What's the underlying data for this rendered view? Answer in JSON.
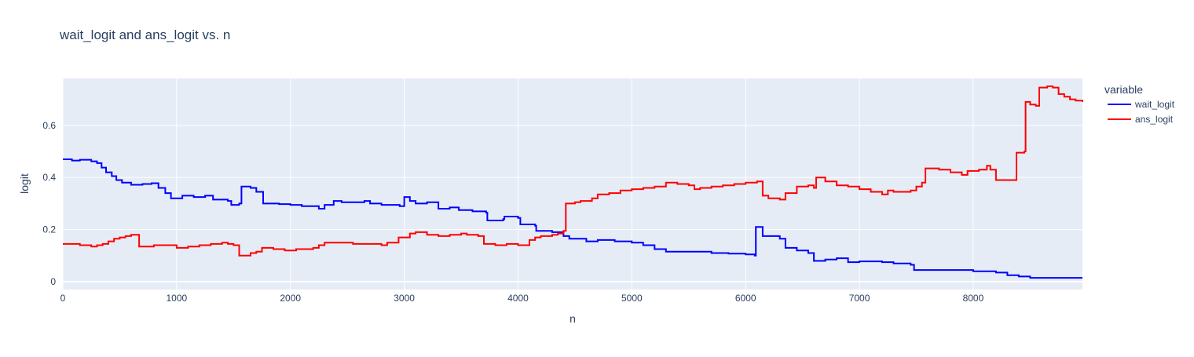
{
  "chart_data": {
    "type": "line",
    "title": "wait_logit and ans_logit vs. n",
    "xlabel": "n",
    "ylabel": "logit",
    "xlim": [
      0,
      8960
    ],
    "ylim": [
      -0.03,
      0.78
    ],
    "xticks": [
      0,
      1000,
      2000,
      3000,
      4000,
      5000,
      6000,
      7000,
      8000
    ],
    "yticks": [
      0,
      0.2,
      0.4,
      0.6
    ],
    "grid": true,
    "legend": {
      "title": "variable",
      "placement": "right"
    },
    "background_color": "#E5ECF6",
    "line_shape": "step",
    "series": [
      {
        "name": "wait_logit",
        "color": "#0000FF",
        "points": [
          [
            0,
            0.47
          ],
          [
            80,
            0.465
          ],
          [
            150,
            0.468
          ],
          [
            250,
            0.462
          ],
          [
            300,
            0.455
          ],
          [
            340,
            0.438
          ],
          [
            380,
            0.42
          ],
          [
            430,
            0.405
          ],
          [
            470,
            0.39
          ],
          [
            520,
            0.38
          ],
          [
            600,
            0.372
          ],
          [
            700,
            0.375
          ],
          [
            780,
            0.378
          ],
          [
            840,
            0.36
          ],
          [
            900,
            0.34
          ],
          [
            950,
            0.32
          ],
          [
            1050,
            0.33
          ],
          [
            1150,
            0.325
          ],
          [
            1250,
            0.33
          ],
          [
            1320,
            0.315
          ],
          [
            1450,
            0.31
          ],
          [
            1480,
            0.295
          ],
          [
            1550,
            0.3
          ],
          [
            1570,
            0.365
          ],
          [
            1650,
            0.36
          ],
          [
            1700,
            0.345
          ],
          [
            1760,
            0.3
          ],
          [
            1900,
            0.298
          ],
          [
            2000,
            0.295
          ],
          [
            2100,
            0.29
          ],
          [
            2250,
            0.28
          ],
          [
            2300,
            0.295
          ],
          [
            2380,
            0.31
          ],
          [
            2450,
            0.305
          ],
          [
            2550,
            0.305
          ],
          [
            2650,
            0.31
          ],
          [
            2700,
            0.3
          ],
          [
            2800,
            0.295
          ],
          [
            2960,
            0.29
          ],
          [
            3000,
            0.325
          ],
          [
            3050,
            0.31
          ],
          [
            3100,
            0.3
          ],
          [
            3200,
            0.305
          ],
          [
            3300,
            0.28
          ],
          [
            3400,
            0.285
          ],
          [
            3480,
            0.275
          ],
          [
            3600,
            0.27
          ],
          [
            3720,
            0.265
          ],
          [
            3730,
            0.235
          ],
          [
            3870,
            0.24
          ],
          [
            3880,
            0.25
          ],
          [
            4000,
            0.245
          ],
          [
            4020,
            0.22
          ],
          [
            4150,
            0.215
          ],
          [
            4160,
            0.195
          ],
          [
            4300,
            0.19
          ],
          [
            4400,
            0.175
          ],
          [
            4450,
            0.165
          ],
          [
            4600,
            0.155
          ],
          [
            4700,
            0.16
          ],
          [
            4850,
            0.155
          ],
          [
            5000,
            0.15
          ],
          [
            5100,
            0.14
          ],
          [
            5200,
            0.125
          ],
          [
            5300,
            0.115
          ],
          [
            5500,
            0.115
          ],
          [
            5650,
            0.115
          ],
          [
            5700,
            0.11
          ],
          [
            5850,
            0.108
          ],
          [
            6000,
            0.105
          ],
          [
            6080,
            0.1
          ],
          [
            6090,
            0.21
          ],
          [
            6150,
            0.175
          ],
          [
            6300,
            0.165
          ],
          [
            6350,
            0.13
          ],
          [
            6450,
            0.12
          ],
          [
            6550,
            0.11
          ],
          [
            6600,
            0.08
          ],
          [
            6700,
            0.085
          ],
          [
            6800,
            0.09
          ],
          [
            6900,
            0.075
          ],
          [
            7000,
            0.078
          ],
          [
            7200,
            0.075
          ],
          [
            7300,
            0.07
          ],
          [
            7450,
            0.065
          ],
          [
            7480,
            0.045
          ],
          [
            7700,
            0.045
          ],
          [
            7900,
            0.045
          ],
          [
            8000,
            0.04
          ],
          [
            8200,
            0.035
          ],
          [
            8300,
            0.025
          ],
          [
            8400,
            0.02
          ],
          [
            8500,
            0.015
          ],
          [
            8700,
            0.015
          ],
          [
            8960,
            0.015
          ]
        ]
      },
      {
        "name": "ans_logit",
        "color": "#FF0000",
        "points": [
          [
            0,
            0.145
          ],
          [
            100,
            0.145
          ],
          [
            150,
            0.14
          ],
          [
            250,
            0.135
          ],
          [
            300,
            0.14
          ],
          [
            350,
            0.145
          ],
          [
            400,
            0.155
          ],
          [
            450,
            0.165
          ],
          [
            500,
            0.17
          ],
          [
            550,
            0.175
          ],
          [
            600,
            0.18
          ],
          [
            650,
            0.18
          ],
          [
            670,
            0.135
          ],
          [
            800,
            0.14
          ],
          [
            900,
            0.14
          ],
          [
            1000,
            0.13
          ],
          [
            1100,
            0.135
          ],
          [
            1200,
            0.14
          ],
          [
            1300,
            0.145
          ],
          [
            1400,
            0.15
          ],
          [
            1450,
            0.145
          ],
          [
            1500,
            0.14
          ],
          [
            1550,
            0.1
          ],
          [
            1650,
            0.11
          ],
          [
            1700,
            0.115
          ],
          [
            1750,
            0.13
          ],
          [
            1850,
            0.125
          ],
          [
            1950,
            0.12
          ],
          [
            2050,
            0.125
          ],
          [
            2200,
            0.13
          ],
          [
            2250,
            0.14
          ],
          [
            2300,
            0.15
          ],
          [
            2450,
            0.15
          ],
          [
            2550,
            0.145
          ],
          [
            2650,
            0.145
          ],
          [
            2800,
            0.14
          ],
          [
            2850,
            0.15
          ],
          [
            2950,
            0.17
          ],
          [
            3050,
            0.185
          ],
          [
            3100,
            0.19
          ],
          [
            3200,
            0.18
          ],
          [
            3300,
            0.175
          ],
          [
            3400,
            0.18
          ],
          [
            3500,
            0.185
          ],
          [
            3550,
            0.18
          ],
          [
            3650,
            0.175
          ],
          [
            3700,
            0.145
          ],
          [
            3800,
            0.14
          ],
          [
            3900,
            0.145
          ],
          [
            4000,
            0.14
          ],
          [
            4100,
            0.16
          ],
          [
            4150,
            0.17
          ],
          [
            4200,
            0.175
          ],
          [
            4300,
            0.18
          ],
          [
            4350,
            0.185
          ],
          [
            4400,
            0.195
          ],
          [
            4420,
            0.3
          ],
          [
            4500,
            0.305
          ],
          [
            4550,
            0.31
          ],
          [
            4650,
            0.32
          ],
          [
            4700,
            0.335
          ],
          [
            4800,
            0.34
          ],
          [
            4900,
            0.35
          ],
          [
            5000,
            0.355
          ],
          [
            5100,
            0.36
          ],
          [
            5200,
            0.365
          ],
          [
            5300,
            0.38
          ],
          [
            5400,
            0.375
          ],
          [
            5500,
            0.37
          ],
          [
            5550,
            0.355
          ],
          [
            5600,
            0.36
          ],
          [
            5700,
            0.365
          ],
          [
            5800,
            0.37
          ],
          [
            5900,
            0.375
          ],
          [
            6000,
            0.38
          ],
          [
            6100,
            0.385
          ],
          [
            6150,
            0.33
          ],
          [
            6200,
            0.32
          ],
          [
            6300,
            0.315
          ],
          [
            6350,
            0.34
          ],
          [
            6450,
            0.365
          ],
          [
            6550,
            0.37
          ],
          [
            6600,
            0.36
          ],
          [
            6620,
            0.4
          ],
          [
            6700,
            0.385
          ],
          [
            6800,
            0.37
          ],
          [
            6900,
            0.365
          ],
          [
            7000,
            0.355
          ],
          [
            7100,
            0.345
          ],
          [
            7200,
            0.335
          ],
          [
            7250,
            0.35
          ],
          [
            7300,
            0.345
          ],
          [
            7400,
            0.345
          ],
          [
            7450,
            0.35
          ],
          [
            7500,
            0.365
          ],
          [
            7550,
            0.38
          ],
          [
            7580,
            0.435
          ],
          [
            7700,
            0.43
          ],
          [
            7800,
            0.42
          ],
          [
            7900,
            0.41
          ],
          [
            7950,
            0.425
          ],
          [
            8050,
            0.43
          ],
          [
            8120,
            0.445
          ],
          [
            8150,
            0.43
          ],
          [
            8200,
            0.39
          ],
          [
            8300,
            0.39
          ],
          [
            8350,
            0.39
          ],
          [
            8380,
            0.495
          ],
          [
            8450,
            0.5
          ],
          [
            8460,
            0.69
          ],
          [
            8500,
            0.68
          ],
          [
            8550,
            0.675
          ],
          [
            8580,
            0.745
          ],
          [
            8650,
            0.75
          ],
          [
            8700,
            0.745
          ],
          [
            8750,
            0.72
          ],
          [
            8800,
            0.71
          ],
          [
            8850,
            0.7
          ],
          [
            8900,
            0.695
          ],
          [
            8960,
            0.69
          ]
        ]
      }
    ]
  }
}
